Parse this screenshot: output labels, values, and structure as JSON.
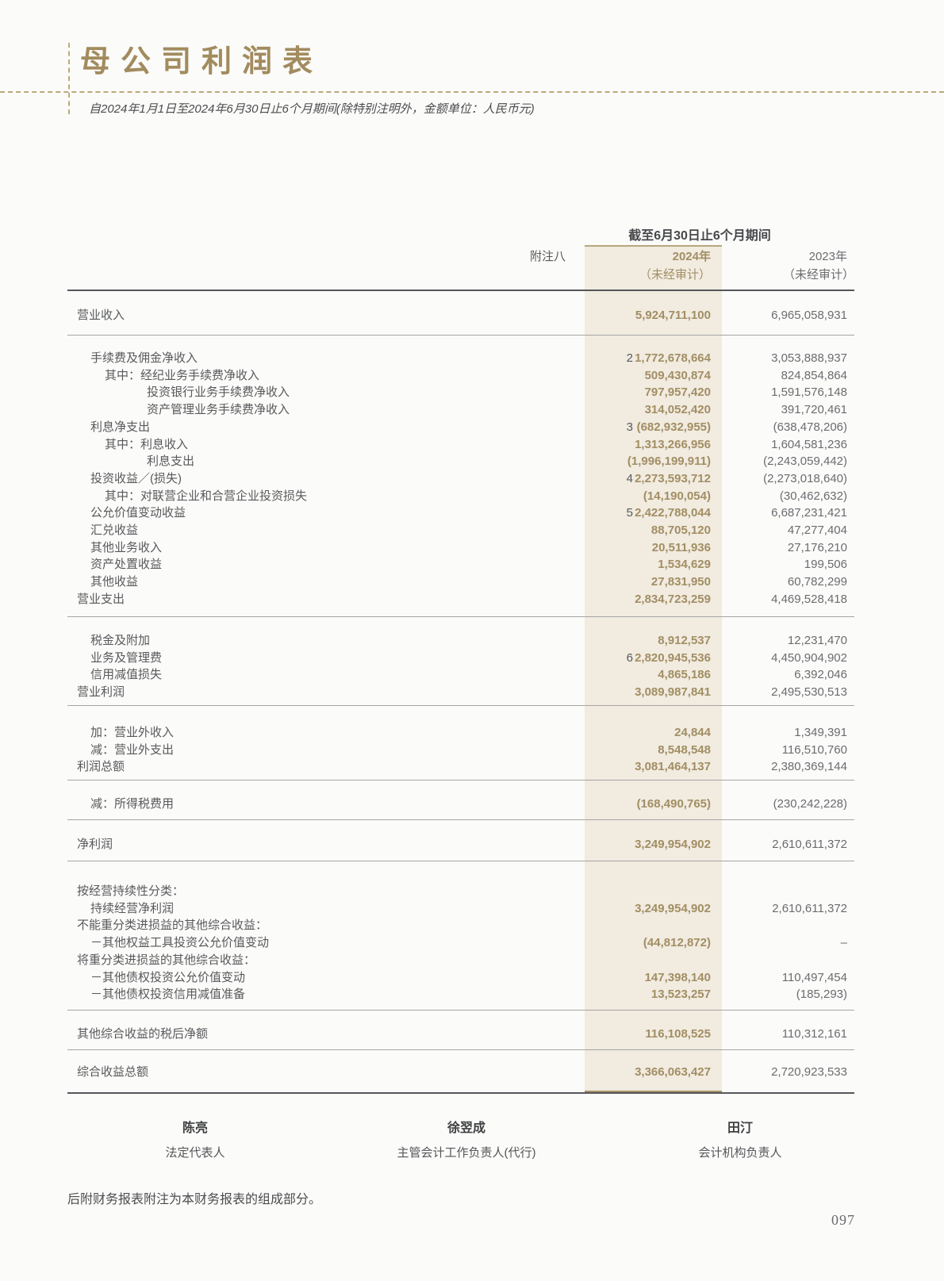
{
  "page": {
    "title": "母公司利润表",
    "subtitle": "自2024年1月1日至2024年6月30日止6个月期间(除特别注明外，金额单位：人民币元)",
    "footnote": "后附财务报表附注为本财务报表的组成部分。",
    "page_number": "097"
  },
  "table": {
    "period_header": "截至6月30日止6个月期间",
    "note_header": "附注八",
    "col_2024": {
      "year": "2024年",
      "audit": "（未经审计）"
    },
    "col_2023": {
      "year": "2023年",
      "audit": "（未经审计）"
    },
    "blocks": [
      [
        {
          "l": "营业收入",
          "n": "",
          "a": "5,924,711,100",
          "b": "6,965,058,931",
          "i": 0
        }
      ],
      [
        {
          "l": "手续费及佣金净收入",
          "n": "2",
          "a": "1,772,678,664",
          "b": "3,053,888,937",
          "i": 1
        },
        {
          "l": "其中：经纪业务手续费净收入",
          "n": "",
          "a": "509,430,874",
          "b": "824,854,864",
          "i": 2
        },
        {
          "l": "投资银行业务手续费净收入",
          "n": "",
          "a": "797,957,420",
          "b": "1,591,576,148",
          "i": 3
        },
        {
          "l": "资产管理业务手续费净收入",
          "n": "",
          "a": "314,052,420",
          "b": "391,720,461",
          "i": 3
        },
        {
          "l": "利息净支出",
          "n": "3",
          "a": "(682,932,955)",
          "b": "(638,478,206)",
          "i": 1
        },
        {
          "l": "其中：利息收入",
          "n": "",
          "a": "1,313,266,956",
          "b": "1,604,581,236",
          "i": 2
        },
        {
          "l": "利息支出",
          "n": "",
          "a": "(1,996,199,911)",
          "b": "(2,243,059,442)",
          "i": 3
        },
        {
          "l": "投资收益／(损失)",
          "n": "4",
          "a": "2,273,593,712",
          "b": "(2,273,018,640)",
          "i": 1
        },
        {
          "l": "其中：对联营企业和合营企业投资损失",
          "n": "",
          "a": "(14,190,054)",
          "b": "(30,462,632)",
          "i": 2
        },
        {
          "l": "公允价值变动收益",
          "n": "5",
          "a": "2,422,788,044",
          "b": "6,687,231,421",
          "i": 1
        },
        {
          "l": "汇兑收益",
          "n": "",
          "a": "88,705,120",
          "b": "47,277,404",
          "i": 1
        },
        {
          "l": "其他业务收入",
          "n": "",
          "a": "20,511,936",
          "b": "27,176,210",
          "i": 1
        },
        {
          "l": "资产处置收益",
          "n": "",
          "a": "1,534,629",
          "b": "199,506",
          "i": 1
        },
        {
          "l": "其他收益",
          "n": "",
          "a": "27,831,950",
          "b": "60,782,299",
          "i": 1
        },
        {
          "l": "营业支出",
          "n": "",
          "a": "2,834,723,259",
          "b": "4,469,528,418",
          "i": 0
        }
      ],
      [
        {
          "l": "税金及附加",
          "n": "",
          "a": "8,912,537",
          "b": "12,231,470",
          "i": 1
        },
        {
          "l": "业务及管理费",
          "n": "6",
          "a": "2,820,945,536",
          "b": "4,450,904,902",
          "i": 1
        },
        {
          "l": "信用减值损失",
          "n": "",
          "a": "4,865,186",
          "b": "6,392,046",
          "i": 1
        },
        {
          "l": "营业利润",
          "n": "",
          "a": "3,089,987,841",
          "b": "2,495,530,513",
          "i": 0
        }
      ],
      [
        {
          "l": "加：营业外收入",
          "n": "",
          "a": "24,844",
          "b": "1,349,391",
          "i": 1
        },
        {
          "l": "减：营业外支出",
          "n": "",
          "a": "8,548,548",
          "b": "116,510,760",
          "i": 1
        },
        {
          "l": "利润总额",
          "n": "",
          "a": "3,081,464,137",
          "b": "2,380,369,144",
          "i": 0
        }
      ],
      [
        {
          "l": "减：所得税费用",
          "n": "",
          "a": "(168,490,765)",
          "b": "(230,242,228)",
          "i": 1
        }
      ],
      [
        {
          "l": "净利润",
          "n": "",
          "a": "3,249,954,902",
          "b": "2,610,611,372",
          "i": 0
        }
      ],
      [
        {
          "l": "按经营持续性分类：",
          "n": "",
          "a": "",
          "b": "",
          "i": 0
        },
        {
          "l": "持续经营净利润",
          "n": "",
          "a": "3,249,954,902",
          "b": "2,610,611,372",
          "i": 1
        },
        {
          "l": "不能重分类进损益的其他综合收益：",
          "n": "",
          "a": "",
          "b": "",
          "i": 0
        },
        {
          "l": "－其他权益工具投资公允价值变动",
          "n": "",
          "a": "(44,812,872)",
          "b": "–",
          "i": 1
        },
        {
          "l": "将重分类进损益的其他综合收益：",
          "n": "",
          "a": "",
          "b": "",
          "i": 0
        },
        {
          "l": "－其他债权投资公允价值变动",
          "n": "",
          "a": "147,398,140",
          "b": "110,497,454",
          "i": 1
        },
        {
          "l": "－其他债权投资信用减值准备",
          "n": "",
          "a": "13,523,257",
          "b": "(185,293)",
          "i": 1
        }
      ],
      [
        {
          "l": "其他综合收益的税后净额",
          "n": "",
          "a": "116,108,525",
          "b": "110,312,161",
          "i": 0
        }
      ],
      [
        {
          "l": "综合收益总额",
          "n": "",
          "a": "3,366,063,427",
          "b": "2,720,923,533",
          "i": 0
        }
      ]
    ]
  },
  "signatories": [
    {
      "name": "陈亮",
      "title": "法定代表人"
    },
    {
      "name": "徐翌成",
      "title": "主管会计工作负责人(代行)"
    },
    {
      "name": "田汀",
      "title": "会计机构负责人"
    }
  ],
  "colors": {
    "accent_gold": "#a28b5e",
    "value_gold": "#a28e63",
    "highlight_column_bg": "#f1ebe0",
    "dark_line": "#55565a",
    "light_line": "#a5a5a5"
  }
}
